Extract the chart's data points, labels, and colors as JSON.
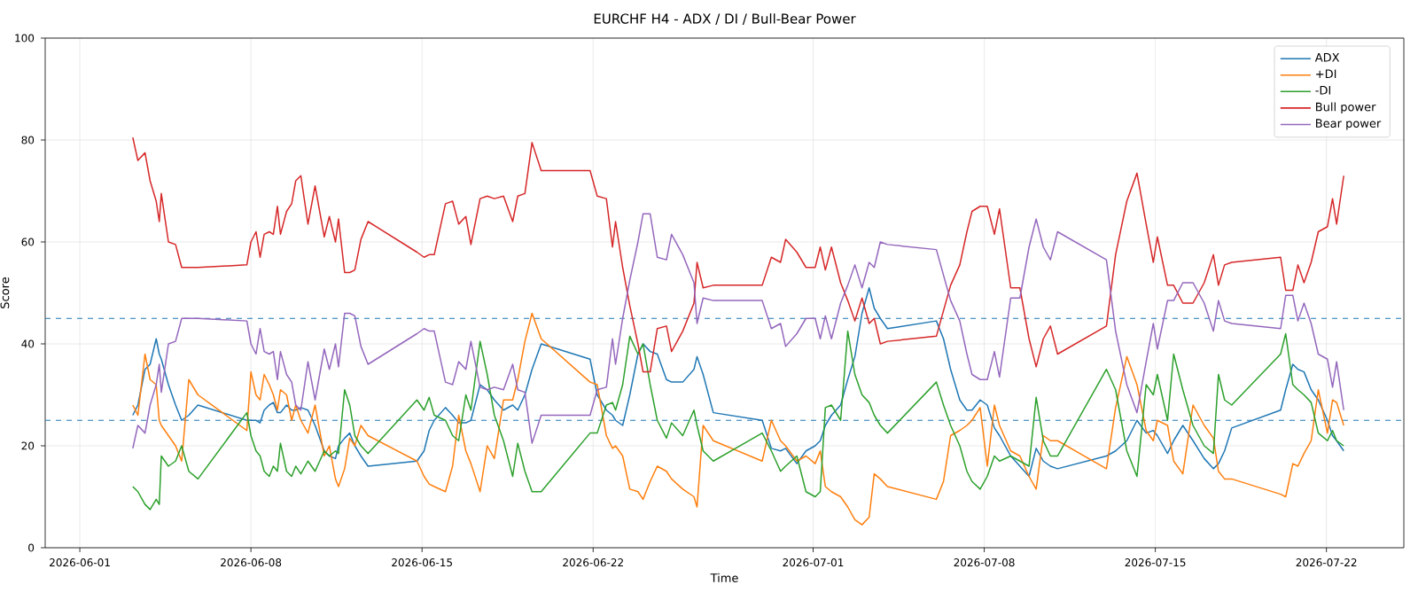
{
  "chart_data": {
    "type": "line",
    "title": "EURCHF H4 - ADX / DI / Bull-Bear Power",
    "xlabel": "Time",
    "ylabel": "Score",
    "xlim": [
      "2026-05-30T14:00",
      "2026-07-25T04:00"
    ],
    "xticks": [
      "2026-06-01",
      "2026-06-08",
      "2026-06-15",
      "2026-06-22",
      "2026-07-01",
      "2026-07-08",
      "2026-07-15",
      "2026-07-22"
    ],
    "ylim": [
      0,
      100
    ],
    "yticks": [
      0,
      20,
      40,
      60,
      80,
      100
    ],
    "grid": true,
    "legend": "top right",
    "marker": "none",
    "line_style": "solid",
    "ref_lines": [
      {
        "axis": "y",
        "value": 45,
        "color": "#1f77b4",
        "line_style": "dashed"
      },
      {
        "axis": "y",
        "value": 25,
        "color": "#1f77b4",
        "line_style": "dashed"
      }
    ],
    "x": [
      "2026-06-03T04:00",
      "2026-06-03T09:00",
      "2026-06-03T16:00",
      "2026-06-03T21:00",
      "2026-06-04T03:00",
      "2026-06-04T06:00",
      "2026-06-04T08:00",
      "2026-06-04T15:00",
      "2026-06-04T22:00",
      "2026-06-05T04:00",
      "2026-06-05T11:00",
      "2026-06-05T20:00",
      "2026-06-07T20:00",
      "2026-06-08T00:00",
      "2026-06-08T05:00",
      "2026-06-08T09:00",
      "2026-06-08T13:00",
      "2026-06-08T18:00",
      "2026-06-08T22:00",
      "2026-06-09T02:00",
      "2026-06-09T05:00",
      "2026-06-09T11:00",
      "2026-06-09T16:00",
      "2026-06-09T20:00",
      "2026-06-10T01:00",
      "2026-06-10T08:00",
      "2026-06-10T15:00",
      "2026-06-11T00:00",
      "2026-06-11T05:00",
      "2026-06-11T11:00",
      "2026-06-11T14:00",
      "2026-06-11T20:00",
      "2026-06-12T01:00",
      "2026-06-12T06:00",
      "2026-06-12T12:00",
      "2026-06-12T19:00",
      "2026-06-14T19:00",
      "2026-06-15T02:00",
      "2026-06-15T07:00",
      "2026-06-15T12:00",
      "2026-06-15T23:00",
      "2026-06-16T06:00",
      "2026-06-16T12:00",
      "2026-06-16T19:00",
      "2026-06-17T00:00",
      "2026-06-17T09:00",
      "2026-06-17T16:00",
      "2026-06-17T23:00",
      "2026-06-18T08:00",
      "2026-06-18T17:00",
      "2026-06-18T22:00",
      "2026-06-19T05:00",
      "2026-06-19T12:00",
      "2026-06-19T21:00",
      "2026-06-21T21:00",
      "2026-06-22T04:00",
      "2026-06-22T13:00",
      "2026-06-22T19:00",
      "2026-06-22T22:00",
      "2026-06-23T05:00",
      "2026-06-23T12:00",
      "2026-06-23T20:00",
      "2026-06-24T01:00",
      "2026-06-24T08:00",
      "2026-06-24T15:00",
      "2026-06-25T00:00",
      "2026-06-25T05:00",
      "2026-06-25T16:00",
      "2026-06-26T03:00",
      "2026-06-26T06:00",
      "2026-06-26T12:00",
      "2026-06-26T22:00",
      "2026-06-28T22:00",
      "2026-06-29T07:00",
      "2026-06-29T16:00",
      "2026-06-29T21:00",
      "2026-06-30T08:00",
      "2026-06-30T17:00",
      "2026-07-01T02:00",
      "2026-07-01T07:00",
      "2026-07-01T12:00",
      "2026-07-01T18:00",
      "2026-07-02T03:00",
      "2026-07-02T10:00",
      "2026-07-02T17:00",
      "2026-07-03T00:00",
      "2026-07-03T07:00",
      "2026-07-03T12:00",
      "2026-07-03T18:00",
      "2026-07-04T01:00",
      "2026-07-06T01:00",
      "2026-07-06T08:00",
      "2026-07-06T15:00",
      "2026-07-07T00:00",
      "2026-07-07T07:00",
      "2026-07-07T12:00",
      "2026-07-07T20:00",
      "2026-07-08T03:00",
      "2026-07-08T10:00",
      "2026-07-08T15:00",
      "2026-07-09T02:00",
      "2026-07-09T11:00",
      "2026-07-09T20:00",
      "2026-07-10T03:00",
      "2026-07-10T10:00",
      "2026-07-10T17:00",
      "2026-07-11T00:00",
      "2026-07-13T00:00",
      "2026-07-13T09:00",
      "2026-07-13T20:00",
      "2026-07-14T06:00",
      "2026-07-14T15:00",
      "2026-07-14T22:00",
      "2026-07-15T02:00",
      "2026-07-15T12:00",
      "2026-07-15T18:00",
      "2026-07-16T03:00",
      "2026-07-16T13:00",
      "2026-07-17T00:00",
      "2026-07-17T09:00",
      "2026-07-17T14:00",
      "2026-07-17T20:00",
      "2026-07-18T03:00",
      "2026-07-20T03:00",
      "2026-07-20T08:00",
      "2026-07-20T15:00",
      "2026-07-20T20:00",
      "2026-07-21T02:00",
      "2026-07-21T09:00",
      "2026-07-21T16:00",
      "2026-07-22T01:00",
      "2026-07-22T06:00",
      "2026-07-22T10:00",
      "2026-07-22T17:00"
    ],
    "series": [
      {
        "name": "ADX",
        "color": "#1f77b4",
        "values": [
          26,
          28,
          35,
          36,
          41,
          38,
          37,
          32,
          28,
          25,
          26,
          28,
          25,
          25,
          25,
          24.5,
          27,
          28,
          28.5,
          26.5,
          26.5,
          28,
          27,
          27,
          27.5,
          27,
          24,
          19,
          18,
          17.5,
          20,
          21.5,
          22.5,
          20,
          18,
          16,
          17,
          19,
          23,
          25,
          27.5,
          26,
          24.5,
          24.5,
          25,
          32,
          31,
          29,
          27,
          28,
          27,
          30,
          35,
          40,
          37,
          30,
          27,
          26,
          25,
          24,
          30,
          38,
          40,
          38.5,
          38,
          33,
          32.5,
          32.5,
          35,
          37.5,
          34,
          26.5,
          25,
          19.5,
          19,
          19.5,
          16.5,
          19,
          20,
          21,
          24,
          26,
          28,
          33,
          37.5,
          46,
          51,
          47,
          45,
          43,
          44.5,
          41,
          35,
          29,
          27,
          27,
          29,
          28,
          23.5,
          22,
          18,
          16,
          14,
          19.5,
          17,
          16,
          15.5,
          18,
          19,
          21,
          25,
          22.5,
          23,
          22,
          18.5,
          21,
          24,
          21,
          17.5,
          15.5,
          16.5,
          19,
          23.5,
          27,
          31,
          36,
          35,
          34.5,
          31,
          29,
          25,
          22,
          21,
          19
        ]
      },
      {
        "name": "+DI",
        "color": "#ff7f0e",
        "values": [
          28,
          26,
          38,
          33,
          32,
          25,
          24,
          22,
          20,
          17,
          33,
          30,
          23,
          34.5,
          30,
          29,
          34,
          32,
          30,
          27,
          31,
          30,
          25,
          28,
          25,
          22.5,
          28,
          18,
          20,
          13.5,
          12,
          15.5,
          21.5,
          20,
          24,
          22,
          17,
          14,
          12.5,
          12,
          11,
          16,
          26,
          19,
          16.5,
          11,
          20,
          17.5,
          29,
          29,
          33,
          40.5,
          46,
          41,
          32.5,
          32,
          22,
          19.5,
          20,
          18,
          11.5,
          11,
          9.5,
          13,
          16,
          15,
          13.5,
          11.5,
          10,
          8,
          24,
          21,
          17,
          25,
          21,
          20,
          17,
          18,
          16.5,
          19,
          12,
          11,
          10,
          8,
          5.5,
          4.5,
          6,
          14.5,
          13.5,
          12,
          9.5,
          13,
          22,
          23,
          24,
          25,
          27.5,
          16,
          28,
          24,
          19,
          18,
          14,
          11.5,
          22,
          21,
          21,
          15.5,
          27.5,
          37.5,
          32,
          23,
          21,
          25,
          24,
          17,
          14.5,
          28,
          24,
          21.5,
          15,
          13.5,
          13.5,
          10.5,
          10,
          16.5,
          16,
          18.5,
          21,
          31,
          22.5,
          29,
          28.5,
          24
        ]
      },
      {
        "name": "-DI",
        "color": "#2ca02c",
        "values": [
          12,
          11,
          8.5,
          7.5,
          9.5,
          8.5,
          18,
          16,
          17,
          20,
          15,
          13.5,
          26.5,
          22,
          19,
          18,
          15,
          14,
          16,
          15,
          20.5,
          15,
          14,
          16,
          14.5,
          17,
          15,
          19,
          18,
          19,
          18.5,
          31,
          28,
          22,
          20,
          18.5,
          29,
          27,
          29.5,
          26,
          25,
          22,
          21,
          30,
          27,
          40.5,
          34,
          26,
          21,
          14,
          20.5,
          15,
          11,
          11,
          22.5,
          22.5,
          28,
          28.5,
          27,
          32,
          41.5,
          38,
          40,
          32,
          25,
          21.5,
          24.5,
          22,
          27,
          24,
          19,
          17,
          22.5,
          19,
          15,
          16,
          18,
          11,
          10,
          11,
          27.5,
          28,
          25,
          42.5,
          34,
          30,
          28.5,
          26,
          24,
          22.5,
          32.5,
          28,
          24,
          20,
          15,
          13,
          11.5,
          14,
          18,
          17,
          18,
          17,
          16,
          29.5,
          21,
          18,
          18,
          35,
          31,
          19,
          14,
          32,
          30,
          34,
          25,
          38,
          31,
          24,
          20,
          18.5,
          34,
          29,
          28,
          38,
          42,
          32,
          31,
          30,
          28.5,
          22.5,
          21,
          23,
          21,
          20
        ]
      },
      {
        "name": "Bull power",
        "color": "#d62728",
        "values": [
          80.5,
          76,
          77.5,
          72,
          68,
          64,
          69.5,
          60,
          59.5,
          55,
          55,
          55,
          55.5,
          60,
          62,
          57,
          61.5,
          62,
          61.5,
          67,
          61.5,
          66,
          67.5,
          72,
          73,
          63.5,
          71,
          61,
          65,
          60,
          64.5,
          54,
          54,
          54.5,
          60.5,
          64,
          58,
          57,
          57.5,
          57.5,
          67.5,
          68,
          63.5,
          65,
          59.5,
          68.5,
          69,
          68.5,
          69,
          64,
          69,
          69.5,
          79.5,
          74,
          74,
          69,
          68.5,
          59,
          64,
          55,
          47.5,
          40,
          34.5,
          34.5,
          43,
          43.5,
          38.5,
          42.5,
          48,
          56,
          51,
          51.5,
          51.5,
          57,
          56,
          60.5,
          58,
          55,
          55,
          59,
          54.5,
          59,
          52,
          48.5,
          44.5,
          49,
          44,
          45,
          40,
          40.5,
          41.5,
          46.5,
          51.5,
          55.5,
          62,
          66,
          67,
          67,
          61.5,
          66.5,
          51,
          51,
          41,
          35.5,
          41,
          43.5,
          38,
          43.5,
          57.5,
          68,
          73.5,
          63.5,
          56,
          61,
          51.5,
          51.5,
          48,
          48,
          52,
          57.5,
          51.5,
          55.5,
          56,
          57,
          50.5,
          50.5,
          55.5,
          52,
          56,
          62,
          63,
          68.5,
          63.5,
          73
        ]
      },
      {
        "name": "Bear power",
        "color": "#9467bd",
        "values": [
          19.5,
          24,
          22.5,
          28,
          32,
          36,
          30.5,
          40,
          40.5,
          45,
          45,
          45,
          44.5,
          40,
          38,
          43,
          38.5,
          38,
          38.5,
          33,
          38.5,
          34,
          32.5,
          28,
          27,
          36.5,
          29,
          39,
          35,
          40,
          35.5,
          46,
          46,
          45.5,
          39.5,
          36,
          42,
          43,
          42.5,
          42.5,
          32.5,
          32,
          36.5,
          35,
          40.5,
          31.5,
          31,
          31.5,
          31,
          36,
          31,
          30.5,
          20.5,
          26,
          26,
          31,
          31.5,
          41,
          36,
          45,
          52.5,
          60,
          65.5,
          65.5,
          57,
          56.5,
          61.5,
          57.5,
          52,
          44,
          49,
          48.5,
          48.5,
          43,
          44,
          39.5,
          42,
          45,
          45,
          41,
          45.5,
          41,
          48,
          51.5,
          55.5,
          51,
          56,
          55,
          60,
          59.5,
          58.5,
          53.5,
          48.5,
          44.5,
          38,
          34,
          33,
          33,
          38.5,
          33.5,
          49,
          49,
          59,
          64.5,
          59,
          56.5,
          62,
          56.5,
          42.5,
          32,
          26.5,
          36.5,
          44,
          39,
          48.5,
          48.5,
          52,
          52,
          48,
          42.5,
          48.5,
          44.5,
          44,
          43,
          49.5,
          49.5,
          44.5,
          48,
          44,
          38,
          37,
          31.5,
          36.5,
          27
        ]
      }
    ]
  }
}
